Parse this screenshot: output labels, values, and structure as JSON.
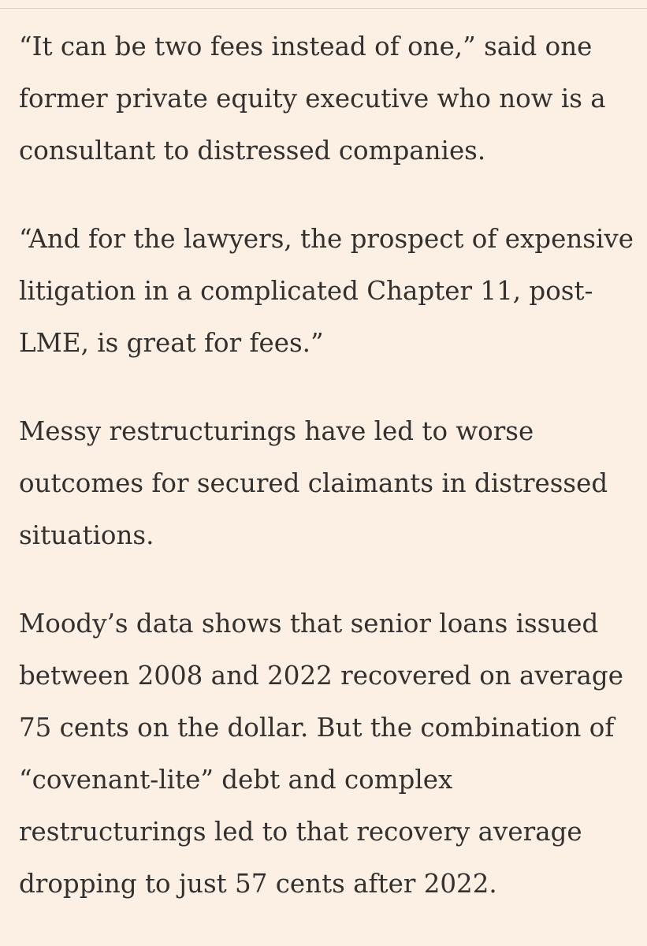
{
  "article": {
    "paragraphs": [
      "“It can be two fees instead of one,” said one former private equity executive who now is a consultant to distressed companies.",
      "“And for the lawyers, the prospect of expensive litigation in a complicated Chapter 11, post-LME, is great for fees.”",
      "Messy restructurings have led to worse outcomes for secured claimants in distressed situations.",
      "Moody’s data shows that senior loans issued between 2008 and 2022 recovered on average 75 cents on the dollar. But the combination of “covenant-lite” debt and complex restructurings led to that recovery average dropping to just 57 cents after 2022."
    ]
  },
  "colors": {
    "background": "#fcf0e5",
    "text": "#33302e",
    "rule": "#d9cfc6"
  }
}
